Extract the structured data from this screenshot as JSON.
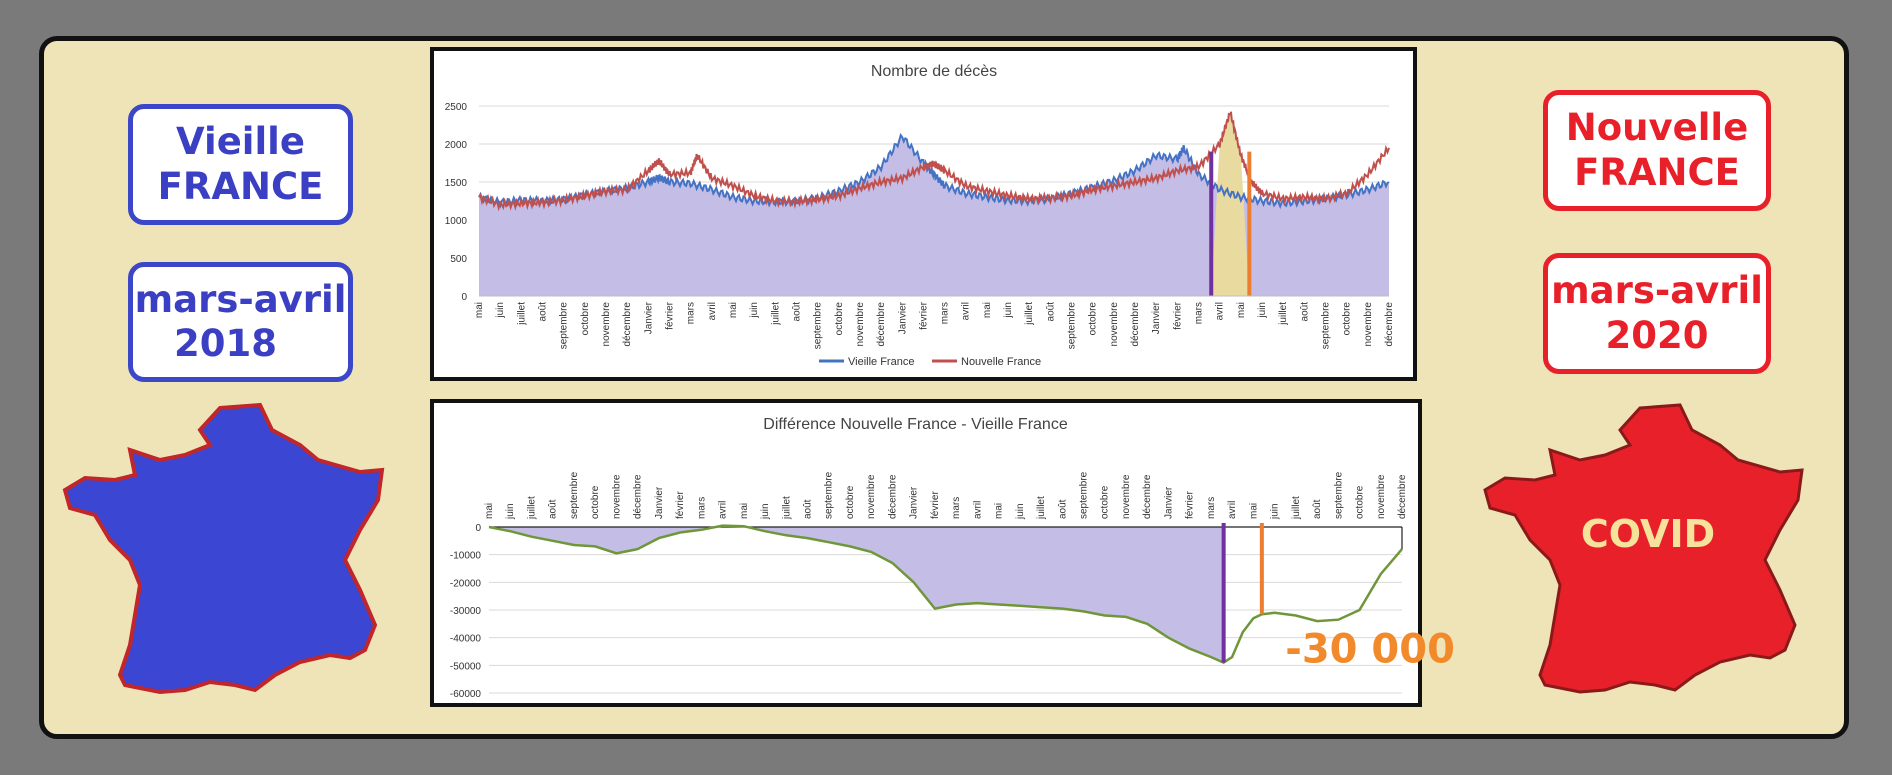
{
  "left": {
    "title_line1": "Vieille",
    "title_line2": "FRANCE",
    "period_line1": "mars-avril",
    "period_line2": "2018",
    "color": "#3b47c8"
  },
  "right": {
    "title_line1": "Nouvelle",
    "title_line2": "FRANCE",
    "period_line1": "mars-avril",
    "period_line2": "2020",
    "map_label": "COVID",
    "color": "#e8202a"
  },
  "chart_data": [
    {
      "type": "line",
      "title": "Nombre de décès",
      "x_tick_labels": [
        "mai",
        "juin",
        "juillet",
        "août",
        "septembre",
        "octobre",
        "novembre",
        "décembre",
        "Janvier",
        "février",
        "mars",
        "avril",
        "mai",
        "juin",
        "juillet",
        "août",
        "septembre",
        "octobre",
        "novembre",
        "décembre",
        "Janvier",
        "février",
        "mars",
        "avril",
        "mai",
        "juin",
        "juillet",
        "août",
        "septembre",
        "octobre",
        "novembre",
        "décembre",
        "Janvier",
        "février",
        "mars",
        "avril",
        "mai",
        "juin",
        "juillet",
        "août",
        "septembre",
        "octobre",
        "novembre",
        "décembre"
      ],
      "ylim": [
        0,
        2500
      ],
      "yticks": [
        0,
        500,
        1000,
        1500,
        2000,
        2500
      ],
      "x_unit": "mois (indice, 0 = mai)",
      "series": [
        {
          "name": "Vieille France",
          "color": "#4472c4",
          "x": [
            0,
            1,
            2,
            3,
            4,
            5,
            6,
            7,
            8,
            8.5,
            9,
            10,
            11,
            12,
            13,
            14,
            15,
            16,
            17,
            18,
            19,
            20,
            21,
            21.5,
            22,
            23,
            24,
            25,
            26,
            27,
            28,
            29,
            30,
            31,
            32,
            33,
            33.3,
            34,
            35,
            36,
            37,
            38,
            39,
            40,
            41,
            42,
            43
          ],
          "y": [
            1300,
            1230,
            1260,
            1250,
            1270,
            1330,
            1380,
            1420,
            1500,
            1560,
            1500,
            1480,
            1400,
            1300,
            1250,
            1240,
            1250,
            1290,
            1380,
            1500,
            1700,
            2100,
            1750,
            1600,
            1450,
            1350,
            1300,
            1260,
            1250,
            1280,
            1350,
            1430,
            1520,
            1650,
            1850,
            1800,
            1950,
            1600,
            1400,
            1300,
            1250,
            1220,
            1250,
            1280,
            1330,
            1400,
            1500
          ]
        },
        {
          "name": "Nouvelle France",
          "color": "#c0504d",
          "x": [
            0,
            1,
            2,
            3,
            4,
            5,
            6,
            7,
            8,
            8.5,
            9,
            10,
            10.3,
            11,
            12,
            13,
            14,
            15,
            16,
            17,
            18,
            19,
            20,
            21,
            21.5,
            22,
            23,
            24,
            25,
            26,
            27,
            28,
            29,
            30,
            31,
            32,
            33,
            34,
            35,
            35.5,
            36,
            36.5,
            37,
            38,
            39,
            40,
            41,
            42,
            43
          ],
          "y": [
            1300,
            1200,
            1220,
            1230,
            1260,
            1320,
            1380,
            1400,
            1650,
            1780,
            1600,
            1620,
            1850,
            1550,
            1450,
            1320,
            1250,
            1240,
            1270,
            1320,
            1420,
            1500,
            1550,
            1700,
            1740,
            1650,
            1450,
            1380,
            1320,
            1280,
            1290,
            1320,
            1400,
            1450,
            1500,
            1550,
            1650,
            1700,
            2000,
            2420,
            1850,
            1500,
            1350,
            1280,
            1300,
            1280,
            1350,
            1600,
            1950
          ]
        }
      ],
      "markers": [
        {
          "x": 34.6,
          "color": "#7030a0"
        },
        {
          "x": 36.4,
          "color": "#ed7d31"
        }
      ]
    },
    {
      "type": "area",
      "title": "Différence Nouvelle France - Vieille France",
      "x_tick_labels": [
        "mai",
        "juin",
        "juillet",
        "août",
        "septembre",
        "octobre",
        "novembre",
        "décembre",
        "Janvier",
        "février",
        "mars",
        "avril",
        "mai",
        "juin",
        "juillet",
        "août",
        "septembre",
        "octobre",
        "novembre",
        "décembre",
        "Janvier",
        "février",
        "mars",
        "avril",
        "mai",
        "juin",
        "juillet",
        "août",
        "septembre",
        "octobre",
        "novembre",
        "décembre",
        "Janvier",
        "février",
        "mars",
        "avril",
        "mai",
        "juin",
        "juillet",
        "août",
        "septembre",
        "octobre",
        "novembre",
        "décembre"
      ],
      "ylim": [
        -60000,
        0
      ],
      "yticks": [
        0,
        -10000,
        -20000,
        -30000,
        -40000,
        -50000,
        -60000
      ],
      "series": [
        {
          "name": "",
          "color": "#70963a",
          "x": [
            0,
            1,
            2,
            3,
            4,
            5,
            6,
            7,
            8,
            9,
            10,
            11,
            12,
            13,
            14,
            15,
            16,
            17,
            18,
            19,
            20,
            21,
            22,
            23,
            24,
            25,
            26,
            27,
            28,
            29,
            30,
            31,
            32,
            33,
            34,
            34.6,
            35,
            35.5,
            36,
            36.4,
            37,
            38,
            39,
            40,
            41,
            42,
            43
          ],
          "y": [
            0,
            -1500,
            -3500,
            -5000,
            -6500,
            -7000,
            -9500,
            -8000,
            -4000,
            -2000,
            -1000,
            500,
            300,
            -1500,
            -3000,
            -4000,
            -5500,
            -7000,
            -9000,
            -13000,
            -20000,
            -29500,
            -28000,
            -27500,
            -28000,
            -28500,
            -29000,
            -29500,
            -30500,
            -32000,
            -32500,
            -35000,
            -40000,
            -44000,
            -47000,
            -49000,
            -47000,
            -38000,
            -33000,
            -31500,
            -31000,
            -32000,
            -34000,
            -33500,
            -30000,
            -17000,
            -8000
          ]
        }
      ],
      "markers": [
        {
          "x": 34.6,
          "color": "#7030a0"
        },
        {
          "x": 36.4,
          "color": "#ed7d31"
        }
      ],
      "annotation": {
        "text": "-30 000",
        "color": "#f28a2b"
      }
    }
  ]
}
